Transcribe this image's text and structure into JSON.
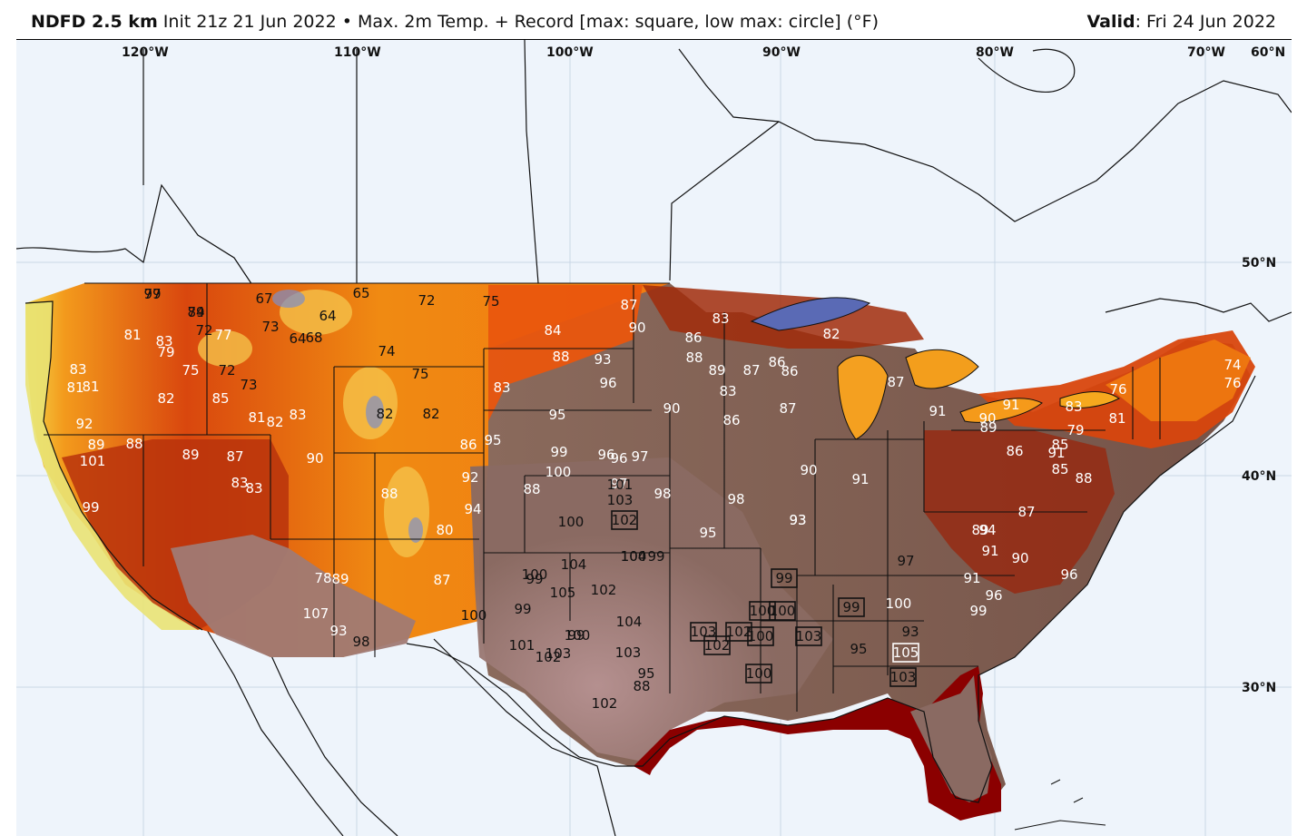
{
  "header": {
    "product": "NDFD 2.5 km",
    "init": "Init 21z 21 Jun 2022",
    "separator": "•",
    "description": "Max. 2m Temp. + Record [max: square, low max: circle] (°F)",
    "valid_label": "Valid",
    "valid_value": ": Fri 24 Jun 2022"
  },
  "axes": {
    "longitudes": [
      "120°W",
      "110°W",
      "100°W",
      "90°W",
      "80°W",
      "70°W"
    ],
    "latitudes": [
      "60°N",
      "50°N",
      "40°N",
      "30°N"
    ]
  },
  "colors": {
    "ocean": "#eef4fb",
    "coast_yellow": "#e8e170",
    "mid_orange": "#f48a12",
    "hot_red": "#c2310a",
    "very_hot_brown": "#7b5a50",
    "extreme_pink": "#a88484",
    "gulf_dark_red": "#8b0000",
    "lake_blue": "#5566aa"
  },
  "temperature_labels": [
    {
      "v": "79"
    },
    {
      "v": "74"
    },
    {
      "v": "67"
    },
    {
      "v": "65"
    },
    {
      "v": "72"
    },
    {
      "v": "75"
    },
    {
      "v": "87"
    },
    {
      "v": "81"
    },
    {
      "v": "83"
    },
    {
      "v": "72"
    },
    {
      "v": "77"
    },
    {
      "v": "73"
    },
    {
      "v": "64"
    },
    {
      "v": "68"
    },
    {
      "v": "64"
    },
    {
      "v": "74"
    },
    {
      "v": "84"
    },
    {
      "v": "90"
    },
    {
      "v": "83"
    },
    {
      "v": "86"
    },
    {
      "v": "82"
    },
    {
      "v": "81"
    },
    {
      "v": "79"
    },
    {
      "v": "75"
    },
    {
      "v": "72"
    },
    {
      "v": "73"
    },
    {
      "v": "75"
    },
    {
      "v": "88"
    },
    {
      "v": "93"
    },
    {
      "v": "83"
    },
    {
      "v": "81"
    },
    {
      "v": "82"
    },
    {
      "v": "85"
    },
    {
      "v": "82"
    },
    {
      "v": "82"
    },
    {
      "v": "83"
    },
    {
      "v": "95"
    },
    {
      "v": "96"
    },
    {
      "v": "92"
    },
    {
      "v": "81"
    },
    {
      "v": "82"
    },
    {
      "v": "83"
    },
    {
      "v": "95"
    },
    {
      "v": "90"
    },
    {
      "v": "86"
    },
    {
      "v": "87"
    },
    {
      "v": "86"
    },
    {
      "v": "88"
    },
    {
      "v": "89"
    },
    {
      "v": "87"
    },
    {
      "v": "83"
    },
    {
      "v": "86"
    },
    {
      "v": "87"
    },
    {
      "v": "89"
    },
    {
      "v": "88"
    },
    {
      "v": "89"
    },
    {
      "v": "87"
    },
    {
      "v": "90"
    },
    {
      "v": "86"
    },
    {
      "v": "99"
    },
    {
      "v": "96"
    },
    {
      "v": "101"
    },
    {
      "v": "83"
    },
    {
      "v": "83"
    },
    {
      "v": "88"
    },
    {
      "v": "92"
    },
    {
      "v": "100"
    },
    {
      "v": "96"
    },
    {
      "v": "97"
    },
    {
      "v": "97"
    },
    {
      "v": "98"
    },
    {
      "v": "99"
    },
    {
      "v": "88"
    },
    {
      "v": "101"
    },
    {
      "v": "98"
    },
    {
      "v": "90"
    },
    {
      "v": "91"
    },
    {
      "v": "103"
    },
    {
      "v": "100"
    },
    {
      "v": "94"
    },
    {
      "v": "80"
    },
    {
      "v": "104"
    },
    {
      "v": "95"
    },
    {
      "v": "93"
    },
    {
      "v": "99"
    },
    {
      "v": "100"
    },
    {
      "v": "104"
    },
    {
      "v": "100"
    },
    {
      "v": "99"
    },
    {
      "v": "97"
    },
    {
      "v": "93"
    },
    {
      "v": "78"
    },
    {
      "v": "89"
    },
    {
      "v": "87"
    },
    {
      "v": "100"
    },
    {
      "v": "99"
    },
    {
      "v": "105"
    },
    {
      "v": "102"
    },
    {
      "v": "107"
    },
    {
      "v": "93"
    },
    {
      "v": "98"
    },
    {
      "v": "99"
    },
    {
      "v": "104"
    },
    {
      "v": "103"
    },
    {
      "v": "102"
    },
    {
      "v": "103"
    },
    {
      "v": "101"
    },
    {
      "v": "100"
    },
    {
      "v": "95"
    },
    {
      "v": "102"
    },
    {
      "v": "88"
    },
    {
      "v": "91"
    },
    {
      "v": "90"
    },
    {
      "v": "91"
    },
    {
      "v": "89"
    },
    {
      "v": "86"
    },
    {
      "v": "91"
    },
    {
      "v": "87"
    },
    {
      "v": "81"
    },
    {
      "v": "83"
    },
    {
      "v": "85"
    },
    {
      "v": "79"
    },
    {
      "v": "76"
    },
    {
      "v": "74"
    },
    {
      "v": "76"
    },
    {
      "v": "85"
    },
    {
      "v": "88"
    },
    {
      "v": "89"
    },
    {
      "v": "90"
    },
    {
      "v": "91"
    },
    {
      "v": "96"
    },
    {
      "v": "95"
    },
    {
      "v": "93"
    },
    {
      "v": "100"
    },
    {
      "v": "99"
    },
    {
      "v": "96"
    },
    {
      "v": "91"
    },
    {
      "v": "94"
    },
    {
      "v": "97"
    },
    {
      "v": "89"
    }
  ],
  "record_labels": [
    {
      "v": "102"
    },
    {
      "v": "99"
    },
    {
      "v": "100"
    },
    {
      "v": "100"
    },
    {
      "v": "99"
    },
    {
      "v": "103"
    },
    {
      "v": "102"
    },
    {
      "v": "102"
    },
    {
      "v": "100"
    },
    {
      "v": "103"
    },
    {
      "v": "100"
    },
    {
      "v": "105"
    },
    {
      "v": "103"
    }
  ]
}
